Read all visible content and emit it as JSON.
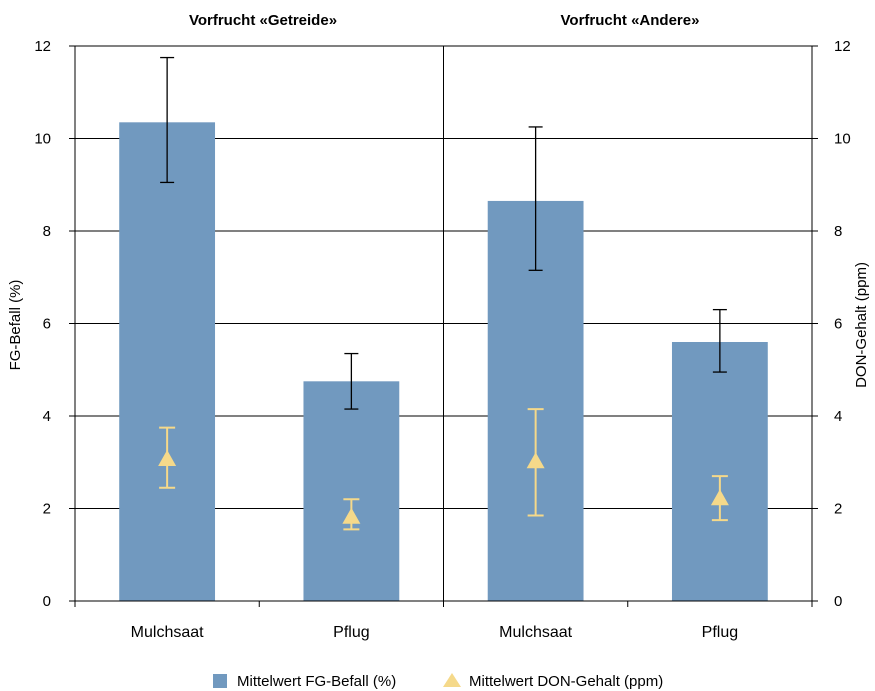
{
  "chart_data": {
    "type": "bar",
    "panels": [
      {
        "title": "Vorfrucht «Getreide»"
      },
      {
        "title": "Vorfrucht «Andere»"
      }
    ],
    "categories": [
      "Mulchsaat",
      "Pflug",
      "Mulchsaat",
      "Pflug"
    ],
    "series": [
      {
        "name": "Mittelwert FG-Befall (%)",
        "type": "bar",
        "axis": "left",
        "values": [
          10.35,
          4.75,
          8.65,
          5.6
        ],
        "error_low": [
          9.05,
          4.15,
          7.15,
          4.95
        ],
        "error_high": [
          11.75,
          5.35,
          10.25,
          6.3
        ],
        "color": "#7199bf"
      },
      {
        "name": "Mittelwert DON-Gehalt (ppm)",
        "type": "scatter",
        "marker": "triangle",
        "axis": "right",
        "values": [
          3.05,
          1.8,
          3.0,
          2.2
        ],
        "error_low": [
          2.45,
          1.55,
          1.85,
          1.75
        ],
        "error_high": [
          3.75,
          2.2,
          4.15,
          2.7
        ],
        "color": "#f5d98a"
      }
    ],
    "ylabel": "FG-Befall  (%)",
    "y2label": "DON-Gehalt (ppm)",
    "ylim": [
      0,
      12
    ],
    "y2lim": [
      0,
      12
    ],
    "yticks": [
      "0",
      "2",
      "4",
      "6",
      "8",
      "10",
      "12"
    ],
    "y2ticks": [
      "0",
      "2",
      "4",
      "6",
      "8",
      "10",
      "12"
    ],
    "grid": true,
    "legend": "bottom"
  }
}
